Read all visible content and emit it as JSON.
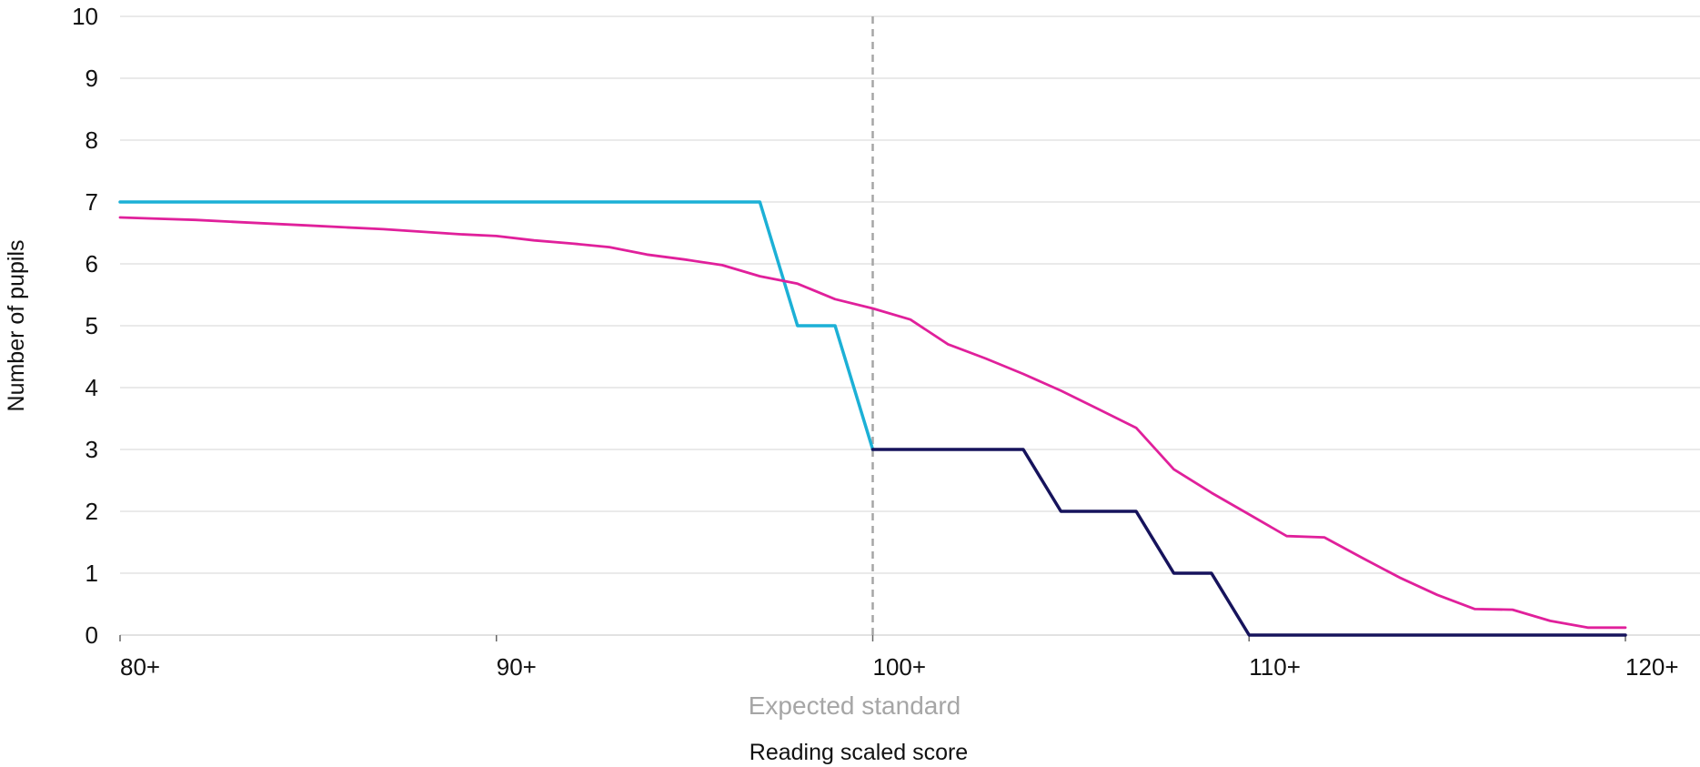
{
  "chart_data": {
    "type": "line",
    "xlabel": "Reading scaled score",
    "ylabel": "Number of pupils",
    "xlim": [
      80,
      122
    ],
    "ylim": [
      0,
      10
    ],
    "x_ticks": [
      80,
      90,
      100,
      110,
      120
    ],
    "x_tick_labels": [
      "80+",
      "90+",
      "100+",
      "110+",
      "120+"
    ],
    "y_ticks": [
      0,
      1,
      2,
      3,
      4,
      5,
      6,
      7,
      8,
      9,
      10
    ],
    "grid": true,
    "legend": "none",
    "reference_line": {
      "x": 100,
      "label": "Expected standard",
      "color": "#a6a6a6",
      "style": "dashed"
    },
    "series": [
      {
        "color": "#1cb0d6",
        "x": [
          80,
          97,
          98,
          99,
          100
        ],
        "y": [
          7,
          7,
          5,
          5,
          3
        ]
      },
      {
        "color": "#16135c",
        "x": [
          100,
          104,
          105,
          107,
          108,
          109,
          110,
          120
        ],
        "y": [
          3,
          3,
          2,
          2,
          1,
          1,
          0,
          0
        ]
      },
      {
        "color": "#e0209b",
        "x": [
          80,
          81,
          82,
          83,
          84,
          85,
          86,
          87,
          88,
          89,
          90,
          91,
          92,
          93,
          94,
          95,
          96,
          97,
          98,
          99,
          100,
          101,
          102,
          103,
          104,
          105,
          106,
          107,
          108,
          109,
          110,
          111,
          112,
          113,
          114,
          115,
          116,
          117,
          118,
          119,
          120
        ],
        "y": [
          6.75,
          6.73,
          6.71,
          6.68,
          6.65,
          6.62,
          6.59,
          6.56,
          6.52,
          6.48,
          6.45,
          6.38,
          6.33,
          6.27,
          6.15,
          6.07,
          5.98,
          5.8,
          5.68,
          5.43,
          5.28,
          5.1,
          4.7,
          4.47,
          4.22,
          3.95,
          3.65,
          3.35,
          2.68,
          2.3,
          1.95,
          1.6,
          1.58,
          1.25,
          0.93,
          0.65,
          0.42,
          0.41,
          0.23,
          0.12,
          0.12
        ]
      }
    ]
  }
}
